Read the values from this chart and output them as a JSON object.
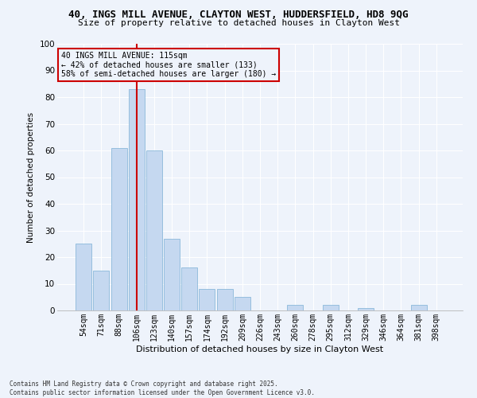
{
  "title_line1": "40, INGS MILL AVENUE, CLAYTON WEST, HUDDERSFIELD, HD8 9QG",
  "title_line2": "Size of property relative to detached houses in Clayton West",
  "xlabel": "Distribution of detached houses by size in Clayton West",
  "ylabel": "Number of detached properties",
  "categories": [
    "54sqm",
    "71sqm",
    "88sqm",
    "106sqm",
    "123sqm",
    "140sqm",
    "157sqm",
    "174sqm",
    "192sqm",
    "209sqm",
    "226sqm",
    "243sqm",
    "260sqm",
    "278sqm",
    "295sqm",
    "312sqm",
    "329sqm",
    "346sqm",
    "364sqm",
    "381sqm",
    "398sqm"
  ],
  "values": [
    25,
    15,
    61,
    83,
    60,
    27,
    16,
    8,
    8,
    5,
    0,
    0,
    2,
    0,
    2,
    0,
    1,
    0,
    0,
    2,
    0
  ],
  "bar_color": "#c5d8f0",
  "bar_edgecolor": "#7bafd4",
  "bg_color": "#eef3fb",
  "grid_color": "#ffffff",
  "vline_x": 3,
  "vline_color": "#cc0000",
  "annotation_text": "40 INGS MILL AVENUE: 115sqm\n← 42% of detached houses are smaller (133)\n58% of semi-detached houses are larger (180) →",
  "annotation_box_color": "#cc0000",
  "footer_line1": "Contains HM Land Registry data © Crown copyright and database right 2025.",
  "footer_line2": "Contains public sector information licensed under the Open Government Licence v3.0.",
  "ylim": [
    0,
    100
  ],
  "yticks": [
    0,
    10,
    20,
    30,
    40,
    50,
    60,
    70,
    80,
    90,
    100
  ]
}
